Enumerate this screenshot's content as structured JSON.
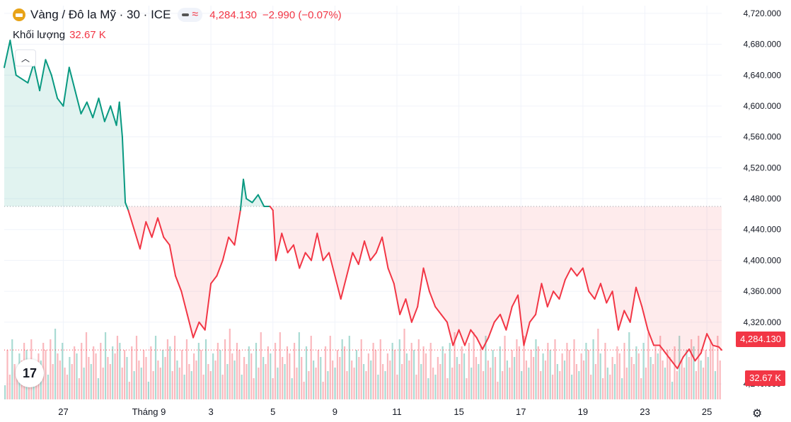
{
  "header": {
    "symbol": "Vàng / Đô la Mỹ · 30 · ICE",
    "price": "4,284.130",
    "change": "−2.990 (−0.07%)",
    "icon": "gold-coin-icon"
  },
  "volume": {
    "label": "Khối lượng",
    "value": "32.67 K"
  },
  "badges": {
    "last_price": "4,284.130",
    "last_volume": "32.67 K"
  },
  "colors": {
    "up": "#089981",
    "down": "#f23645",
    "grid": "#f0f3fa",
    "axis_text": "#131722"
  },
  "chart_data": {
    "type": "area",
    "baseline": 4470,
    "ylim": [
      4200,
      4730
    ],
    "y_ticks": [
      "4,720.000",
      "4,680.000",
      "4,640.000",
      "4,600.000",
      "4,560.000",
      "4,520.000",
      "4,480.000",
      "4,440.000",
      "4,400.000",
      "4,360.000",
      "4,320.000",
      "4,284.130",
      "4,240.000"
    ],
    "x_ticks": [
      {
        "label": "27",
        "x": 0.1
      },
      {
        "label": "Tháng 9",
        "x": 0.245
      },
      {
        "label": "3",
        "x": 0.35
      },
      {
        "label": "5",
        "x": 0.455
      },
      {
        "label": "9",
        "x": 0.56
      },
      {
        "label": "11",
        "x": 0.665
      },
      {
        "label": "15",
        "x": 0.77
      },
      {
        "label": "17",
        "x": 0.875
      },
      {
        "label": "19",
        "x": 0.98
      },
      {
        "label": "23",
        "x": 1.085
      },
      {
        "label": "25",
        "x": 1.19
      }
    ],
    "series": [
      {
        "values": [
          [
            0.0,
            4650
          ],
          [
            0.01,
            4685
          ],
          [
            0.02,
            4640
          ],
          [
            0.04,
            4630
          ],
          [
            0.05,
            4655
          ],
          [
            0.06,
            4620
          ],
          [
            0.07,
            4660
          ],
          [
            0.08,
            4640
          ],
          [
            0.09,
            4610
          ],
          [
            0.1,
            4600
          ],
          [
            0.11,
            4650
          ],
          [
            0.12,
            4620
          ],
          [
            0.13,
            4590
          ],
          [
            0.14,
            4605
          ],
          [
            0.15,
            4585
          ],
          [
            0.16,
            4610
          ],
          [
            0.17,
            4580
          ],
          [
            0.18,
            4600
          ],
          [
            0.19,
            4575
          ],
          [
            0.195,
            4605
          ],
          [
            0.2,
            4560
          ],
          [
            0.205,
            4475
          ],
          [
            0.21,
            4465
          ],
          [
            0.22,
            4440
          ],
          [
            0.23,
            4415
          ],
          [
            0.24,
            4450
          ],
          [
            0.25,
            4430
          ],
          [
            0.26,
            4455
          ],
          [
            0.27,
            4430
          ],
          [
            0.28,
            4420
          ],
          [
            0.29,
            4380
          ],
          [
            0.3,
            4360
          ],
          [
            0.31,
            4330
          ],
          [
            0.32,
            4300
          ],
          [
            0.33,
            4320
          ],
          [
            0.34,
            4310
          ],
          [
            0.35,
            4370
          ],
          [
            0.36,
            4380
          ],
          [
            0.37,
            4400
          ],
          [
            0.38,
            4430
          ],
          [
            0.39,
            4420
          ],
          [
            0.4,
            4465
          ],
          [
            0.405,
            4505
          ],
          [
            0.41,
            4480
          ],
          [
            0.42,
            4475
          ],
          [
            0.43,
            4485
          ],
          [
            0.44,
            4470
          ],
          [
            0.45,
            4470
          ],
          [
            0.455,
            4465
          ],
          [
            0.46,
            4400
          ],
          [
            0.47,
            4435
          ],
          [
            0.48,
            4410
          ],
          [
            0.49,
            4420
          ],
          [
            0.5,
            4390
          ],
          [
            0.51,
            4410
          ],
          [
            0.52,
            4400
          ],
          [
            0.53,
            4435
          ],
          [
            0.54,
            4400
          ],
          [
            0.55,
            4410
          ],
          [
            0.56,
            4380
          ],
          [
            0.57,
            4350
          ],
          [
            0.58,
            4380
          ],
          [
            0.59,
            4410
          ],
          [
            0.6,
            4395
          ],
          [
            0.61,
            4425
          ],
          [
            0.62,
            4400
          ],
          [
            0.63,
            4410
          ],
          [
            0.64,
            4430
          ],
          [
            0.65,
            4390
          ],
          [
            0.66,
            4370
          ],
          [
            0.67,
            4330
          ],
          [
            0.68,
            4350
          ],
          [
            0.69,
            4320
          ],
          [
            0.7,
            4340
          ],
          [
            0.71,
            4390
          ],
          [
            0.72,
            4360
          ],
          [
            0.73,
            4340
          ],
          [
            0.74,
            4330
          ],
          [
            0.75,
            4320
          ],
          [
            0.76,
            4290
          ],
          [
            0.77,
            4310
          ],
          [
            0.78,
            4290
          ],
          [
            0.79,
            4310
          ],
          [
            0.8,
            4300
          ],
          [
            0.81,
            4285
          ],
          [
            0.82,
            4300
          ],
          [
            0.83,
            4320
          ],
          [
            0.84,
            4330
          ],
          [
            0.85,
            4310
          ],
          [
            0.86,
            4340
          ],
          [
            0.87,
            4355
          ],
          [
            0.88,
            4290
          ],
          [
            0.89,
            4320
          ],
          [
            0.9,
            4330
          ],
          [
            0.91,
            4370
          ],
          [
            0.92,
            4340
          ],
          [
            0.93,
            4360
          ],
          [
            0.94,
            4350
          ],
          [
            0.95,
            4375
          ],
          [
            0.96,
            4390
          ],
          [
            0.97,
            4380
          ],
          [
            0.98,
            4390
          ],
          [
            0.99,
            4360
          ],
          [
            1.0,
            4350
          ],
          [
            1.01,
            4370
          ],
          [
            1.02,
            4345
          ],
          [
            1.03,
            4360
          ],
          [
            1.04,
            4310
          ],
          [
            1.05,
            4335
          ],
          [
            1.06,
            4320
          ],
          [
            1.07,
            4365
          ],
          [
            1.08,
            4340
          ],
          [
            1.09,
            4310
          ],
          [
            1.1,
            4290
          ],
          [
            1.11,
            4290
          ],
          [
            1.12,
            4280
          ],
          [
            1.13,
            4270
          ],
          [
            1.14,
            4260
          ],
          [
            1.15,
            4275
          ],
          [
            1.16,
            4285
          ],
          [
            1.17,
            4270
          ],
          [
            1.18,
            4280
          ],
          [
            1.19,
            4305
          ],
          [
            1.2,
            4290
          ],
          [
            1.21,
            4288
          ],
          [
            1.215,
            4284
          ]
        ]
      }
    ],
    "xlim": [
      0,
      1.215
    ]
  }
}
